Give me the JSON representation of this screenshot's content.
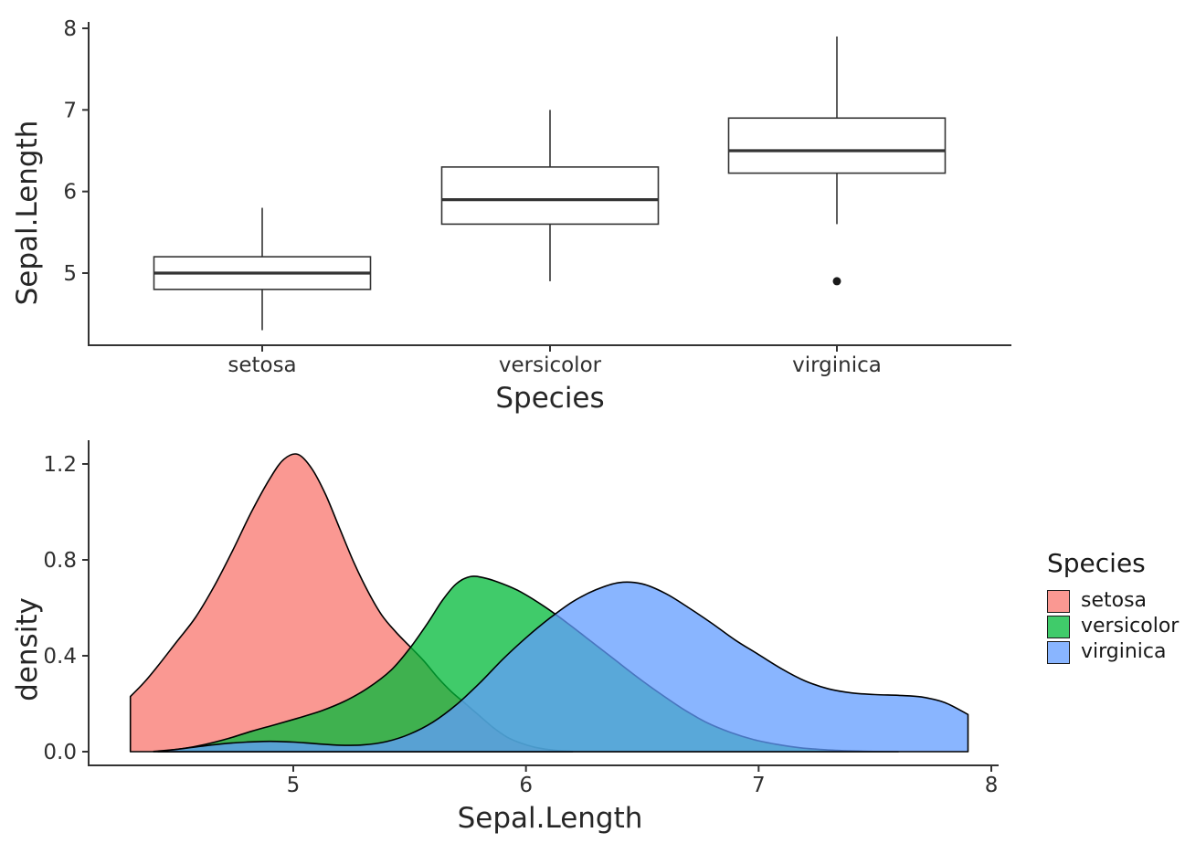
{
  "figure": {
    "background": "#ffffff",
    "text_color": "#262626",
    "axis_color": "#333333"
  },
  "chart_data": [
    {
      "type": "boxplot",
      "xlabel": "Species",
      "ylabel": "Sepal.Length",
      "categories": [
        "setosa",
        "versicolor",
        "virginica"
      ],
      "yticks": [
        5,
        6,
        7,
        8
      ],
      "ytick_labels": [
        "5",
        "6",
        "7",
        "8"
      ],
      "ylim": [
        4.12,
        8.18
      ],
      "grid": false,
      "box_fill": "#ffffff",
      "box_stroke": "#333333",
      "boxes": [
        {
          "category": "setosa",
          "whisker_low": 4.3,
          "q1": 4.8,
          "median": 5.0,
          "q3": 5.2,
          "whisker_high": 5.8,
          "outliers": []
        },
        {
          "category": "versicolor",
          "whisker_low": 4.9,
          "q1": 5.6,
          "median": 5.9,
          "q3": 6.3,
          "whisker_high": 7.0,
          "outliers": []
        },
        {
          "category": "virginica",
          "whisker_low": 5.6,
          "q1": 6.225,
          "median": 6.5,
          "q3": 6.9,
          "whisker_high": 7.9,
          "outliers": [
            4.9
          ]
        }
      ]
    },
    {
      "type": "area",
      "subtype": "density",
      "xlabel": "Sepal.Length",
      "ylabel": "density",
      "xticks": [
        5,
        6,
        7,
        8
      ],
      "xtick_labels": [
        "5",
        "6",
        "7",
        "8"
      ],
      "yticks": [
        0.0,
        0.4,
        0.8,
        1.2
      ],
      "ytick_labels": [
        "0.0",
        "0.4",
        "0.8",
        "1.2"
      ],
      "xlim": [
        4.12,
        8.03
      ],
      "ylim": [
        0,
        1.3
      ],
      "grid": false,
      "stroke_color": "#000000",
      "legend": {
        "title": "Species",
        "position": "right",
        "entries": [
          {
            "label": "setosa",
            "fill": "rgba(248,118,109,0.75)"
          },
          {
            "label": "versicolor",
            "fill": "rgba(0,186,56,0.75)"
          },
          {
            "label": "virginica",
            "fill": "rgba(97,156,255,0.75)"
          }
        ]
      },
      "series": [
        {
          "name": "setosa",
          "fill": "rgba(248,118,109,0.75)",
          "base_color": "#F8766D",
          "points": [
            [
              4.3,
              0.23
            ],
            [
              4.36,
              0.29
            ],
            [
              4.42,
              0.36
            ],
            [
              4.5,
              0.46
            ],
            [
              4.58,
              0.56
            ],
            [
              4.66,
              0.69
            ],
            [
              4.74,
              0.84
            ],
            [
              4.82,
              1.0
            ],
            [
              4.9,
              1.14
            ],
            [
              4.96,
              1.22
            ],
            [
              5.02,
              1.24
            ],
            [
              5.08,
              1.18
            ],
            [
              5.14,
              1.07
            ],
            [
              5.2,
              0.93
            ],
            [
              5.26,
              0.79
            ],
            [
              5.32,
              0.67
            ],
            [
              5.38,
              0.57
            ],
            [
              5.44,
              0.5
            ],
            [
              5.5,
              0.44
            ],
            [
              5.56,
              0.38
            ],
            [
              5.62,
              0.31
            ],
            [
              5.68,
              0.25
            ],
            [
              5.74,
              0.2
            ],
            [
              5.8,
              0.15
            ],
            [
              5.86,
              0.1
            ],
            [
              5.92,
              0.06
            ],
            [
              5.98,
              0.035
            ],
            [
              6.04,
              0.018
            ],
            [
              6.12,
              0.006
            ],
            [
              6.2,
              0.001
            ]
          ]
        },
        {
          "name": "versicolor",
          "fill": "rgba(0,186,56,0.75)",
          "base_color": "#00BA38",
          "points": [
            [
              4.42,
              0.001
            ],
            [
              4.52,
              0.012
            ],
            [
              4.62,
              0.03
            ],
            [
              4.72,
              0.055
            ],
            [
              4.82,
              0.085
            ],
            [
              4.92,
              0.112
            ],
            [
              5.02,
              0.14
            ],
            [
              5.12,
              0.17
            ],
            [
              5.22,
              0.21
            ],
            [
              5.32,
              0.265
            ],
            [
              5.42,
              0.34
            ],
            [
              5.5,
              0.43
            ],
            [
              5.58,
              0.54
            ],
            [
              5.64,
              0.63
            ],
            [
              5.7,
              0.7
            ],
            [
              5.76,
              0.73
            ],
            [
              5.82,
              0.725
            ],
            [
              5.9,
              0.7
            ],
            [
              5.98,
              0.665
            ],
            [
              6.08,
              0.605
            ],
            [
              6.18,
              0.535
            ],
            [
              6.28,
              0.46
            ],
            [
              6.38,
              0.385
            ],
            [
              6.48,
              0.31
            ],
            [
              6.58,
              0.24
            ],
            [
              6.68,
              0.175
            ],
            [
              6.78,
              0.12
            ],
            [
              6.88,
              0.08
            ],
            [
              6.98,
              0.05
            ],
            [
              7.08,
              0.03
            ],
            [
              7.18,
              0.016
            ],
            [
              7.3,
              0.007
            ],
            [
              7.45,
              0.002
            ],
            [
              7.6,
              0.0
            ]
          ]
        },
        {
          "name": "virginica",
          "fill": "rgba(97,156,255,0.75)",
          "base_color": "#619CFF",
          "points": [
            [
              4.4,
              0.001
            ],
            [
              4.5,
              0.01
            ],
            [
              4.6,
              0.022
            ],
            [
              4.7,
              0.033
            ],
            [
              4.8,
              0.04
            ],
            [
              4.9,
              0.043
            ],
            [
              5.0,
              0.04
            ],
            [
              5.1,
              0.033
            ],
            [
              5.2,
              0.027
            ],
            [
              5.3,
              0.028
            ],
            [
              5.4,
              0.042
            ],
            [
              5.5,
              0.073
            ],
            [
              5.6,
              0.123
            ],
            [
              5.7,
              0.195
            ],
            [
              5.8,
              0.285
            ],
            [
              5.9,
              0.385
            ],
            [
              6.0,
              0.475
            ],
            [
              6.1,
              0.555
            ],
            [
              6.2,
              0.625
            ],
            [
              6.3,
              0.675
            ],
            [
              6.4,
              0.705
            ],
            [
              6.5,
              0.7
            ],
            [
              6.6,
              0.66
            ],
            [
              6.7,
              0.6
            ],
            [
              6.8,
              0.535
            ],
            [
              6.9,
              0.465
            ],
            [
              7.0,
              0.405
            ],
            [
              7.1,
              0.345
            ],
            [
              7.2,
              0.295
            ],
            [
              7.3,
              0.262
            ],
            [
              7.4,
              0.245
            ],
            [
              7.5,
              0.238
            ],
            [
              7.6,
              0.235
            ],
            [
              7.7,
              0.228
            ],
            [
              7.8,
              0.205
            ],
            [
              7.9,
              0.155
            ]
          ]
        }
      ]
    }
  ]
}
